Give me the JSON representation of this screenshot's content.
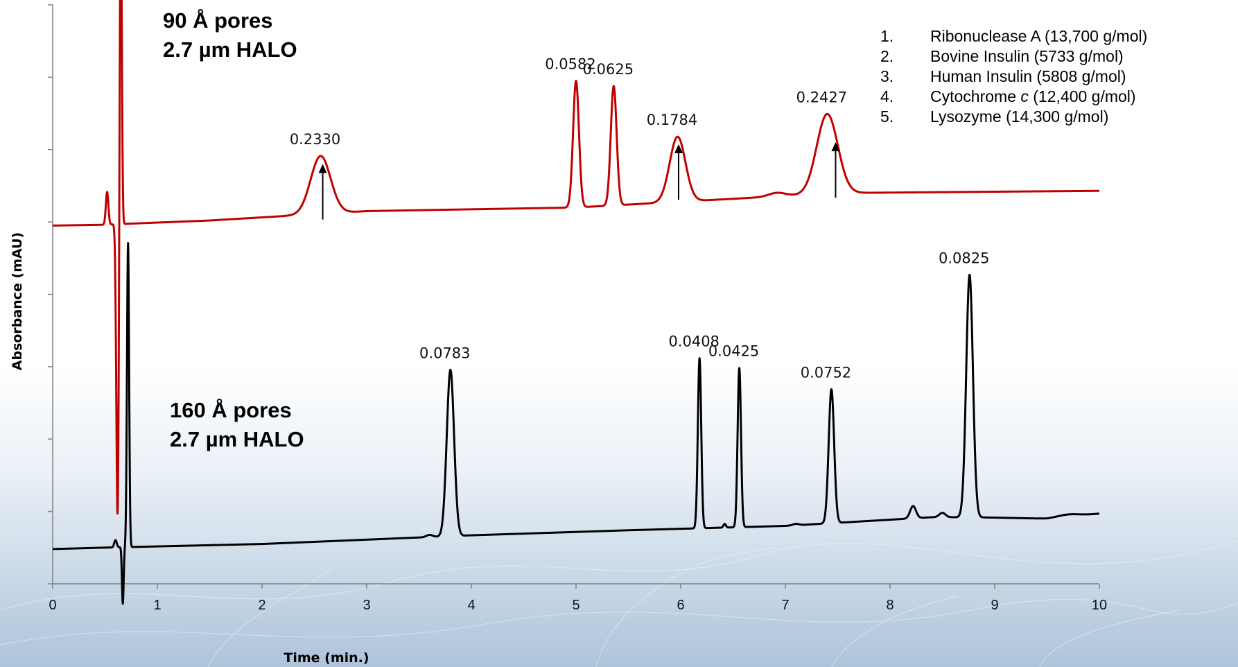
{
  "chart_data": {
    "type": "line",
    "xlabel": "Time (min.)",
    "ylabel": "Absorbance (mAU)",
    "xlim": [
      0,
      10
    ],
    "x_ticks": [
      "0",
      "1",
      "2",
      "3",
      "4",
      "5",
      "6",
      "7",
      "8",
      "9",
      "10"
    ],
    "ylim": [
      0,
      8
    ],
    "y_ticks_labeled": false,
    "grid": false,
    "colors": {
      "red_trace": "#c00000",
      "black_trace": "#000000"
    },
    "series": [
      {
        "name": "90 Å pores 2.7 µm HALO",
        "name_lines": [
          "90 Å pores",
          "2.7 µm HALO"
        ],
        "color": "#c00000",
        "baseline": [
          [
            0,
            4.95
          ],
          [
            0.45,
            4.96
          ],
          [
            1.5,
            5.02
          ],
          [
            3.0,
            5.15
          ],
          [
            5.0,
            5.2
          ],
          [
            7.5,
            5.4
          ],
          [
            10,
            5.43
          ]
        ],
        "peaks": [
          {
            "t": 0.52,
            "height": 0.45,
            "width": 0.012
          },
          {
            "t": 0.65,
            "height": 4.6,
            "width": 0.01
          },
          {
            "t": 0.62,
            "height": -4.05,
            "width": 0.012
          },
          {
            "t": 2.56,
            "height": 0.8,
            "width": 0.095
          },
          {
            "t": 5.0,
            "height": 1.75,
            "width": 0.028
          },
          {
            "t": 5.36,
            "height": 1.65,
            "width": 0.028
          },
          {
            "t": 5.97,
            "height": 0.9,
            "width": 0.075
          },
          {
            "t": 6.92,
            "height": 0.05,
            "width": 0.08
          },
          {
            "t": 7.4,
            "height": 1.1,
            "width": 0.1
          }
        ],
        "peak_labels": [
          {
            "t": 2.56,
            "label": "0.2330"
          },
          {
            "t": 5.0,
            "label": "0.0582"
          },
          {
            "t": 5.36,
            "label": "0.0625"
          },
          {
            "t": 5.97,
            "label": "0.1784"
          },
          {
            "t": 7.4,
            "label": "0.2427"
          }
        ],
        "arrows_at": [
          2.58,
          5.98,
          7.48
        ]
      },
      {
        "name": "160 Å pores 2.7 µm HALO",
        "name_lines": [
          "160 Å pores",
          "2.7 µm HALO"
        ],
        "color": "#000000",
        "baseline": [
          [
            0,
            0.48
          ],
          [
            0.5,
            0.5
          ],
          [
            2.0,
            0.55
          ],
          [
            4.0,
            0.67
          ],
          [
            5.5,
            0.74
          ],
          [
            7.0,
            0.8
          ],
          [
            8.4,
            0.92
          ],
          [
            8.8,
            0.92
          ],
          [
            9.5,
            0.9
          ],
          [
            10,
            0.97
          ]
        ],
        "peaks": [
          {
            "t": 0.6,
            "height": 0.1,
            "width": 0.012
          },
          {
            "t": 0.67,
            "height": -0.78,
            "width": 0.008
          },
          {
            "t": 0.72,
            "height": 4.2,
            "width": 0.01
          },
          {
            "t": 3.6,
            "height": 0.03,
            "width": 0.03
          },
          {
            "t": 3.8,
            "height": 2.3,
            "width": 0.035
          },
          {
            "t": 6.18,
            "height": 2.35,
            "width": 0.016
          },
          {
            "t": 6.42,
            "height": 0.05,
            "width": 0.012
          },
          {
            "t": 6.56,
            "height": 2.2,
            "width": 0.016
          },
          {
            "t": 7.1,
            "height": 0.02,
            "width": 0.03
          },
          {
            "t": 7.44,
            "height": 1.85,
            "width": 0.026
          },
          {
            "t": 8.22,
            "height": 0.17,
            "width": 0.028
          },
          {
            "t": 8.5,
            "height": 0.06,
            "width": 0.03
          },
          {
            "t": 8.76,
            "height": 3.35,
            "width": 0.032
          },
          {
            "t": 9.7,
            "height": 0.03,
            "width": 0.1
          }
        ],
        "peak_labels": [
          {
            "t": 3.8,
            "label": "0.0783"
          },
          {
            "t": 6.18,
            "label": "0.0408"
          },
          {
            "t": 6.56,
            "label": "0.0425"
          },
          {
            "t": 7.44,
            "label": "0.0752"
          },
          {
            "t": 8.76,
            "label": "0.0825"
          }
        ]
      }
    ],
    "legend": [
      {
        "num": "1.",
        "text": "Ribonuclease A (13,700 g/mol)"
      },
      {
        "num": "2.",
        "text": "Bovine Insulin (5733 g/mol)"
      },
      {
        "num": "3.",
        "text": "Human Insulin (5808 g/mol)"
      },
      {
        "num": "4.",
        "pre": "Cytochrome ",
        "italic": "c",
        "post": " (12,400 g/mol)"
      },
      {
        "num": "5.",
        "text": "Lysozyme (14,300 g/mol)"
      }
    ],
    "legend_placement": "top-right"
  }
}
